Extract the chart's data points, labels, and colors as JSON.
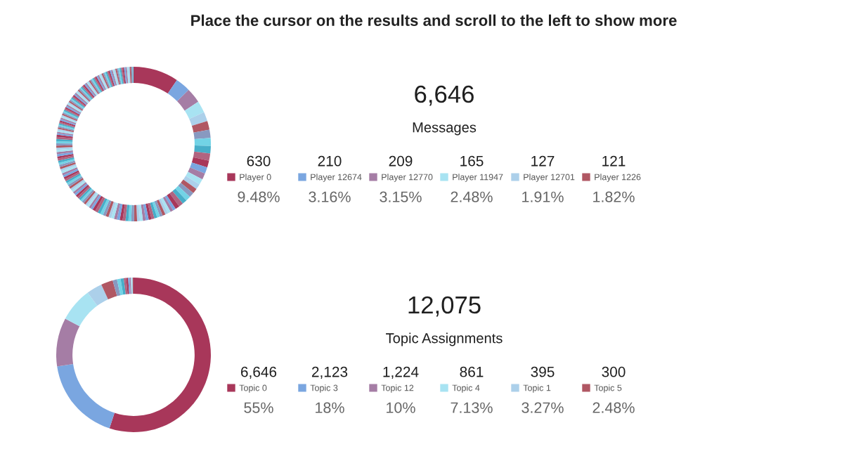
{
  "chart_data": [
    {
      "type": "donut",
      "title": "6,646",
      "subtitle": "Messages",
      "legend": "right",
      "annotations": [
        "Place the cursor on the results and scroll to the left to show more",
        {
          "text": "9.48%",
          "x": "Player 0"
        },
        {
          "text": "3.16%",
          "x": "Player 12674"
        },
        {
          "text": "3.15%",
          "x": "Player 12770"
        },
        {
          "text": "2.48%",
          "x": "Player 11947"
        },
        {
          "text": "1.91%",
          "x": "Player 12701"
        },
        {
          "text": "1.82%",
          "x": "Player 1226"
        }
      ],
      "categories": [
        "Player 0",
        "Player 12674",
        "Player 12770",
        "Player 11947",
        "Player 12701",
        "Player 1226",
        null,
        null,
        null,
        null,
        null,
        null,
        null,
        null,
        null,
        null,
        null,
        null,
        null,
        null,
        null,
        null,
        null,
        null,
        null,
        null,
        null,
        null,
        null,
        null,
        null,
        null,
        null,
        null,
        null,
        null,
        null,
        null,
        null,
        null,
        null,
        null,
        null,
        null,
        null,
        null,
        null,
        null,
        null,
        null,
        null,
        null,
        null,
        null,
        null,
        null,
        null,
        null,
        null,
        null,
        null,
        null,
        null,
        null,
        null,
        null,
        null,
        null,
        null,
        null,
        null,
        null,
        null,
        null,
        null,
        null,
        null,
        null,
        null,
        null,
        null,
        null,
        null,
        null,
        null,
        null,
        null,
        null,
        null,
        null,
        null,
        null,
        null,
        null,
        null,
        null,
        null,
        null,
        null,
        null,
        null,
        null,
        null,
        null,
        null,
        null,
        null,
        null,
        null,
        null,
        null,
        null,
        null,
        null,
        null,
        null,
        null,
        null,
        null,
        null,
        null,
        null,
        null,
        null,
        null,
        null,
        null,
        null,
        null,
        null,
        null,
        null,
        null,
        null,
        null,
        null,
        null,
        null,
        null,
        null,
        null,
        null,
        null,
        null,
        null,
        null,
        null,
        null,
        null,
        null,
        null,
        null,
        null,
        null,
        null,
        null,
        null,
        null,
        null,
        null,
        null,
        null,
        null,
        null,
        null,
        null,
        null,
        null
      ],
      "values": [
        630,
        210,
        209,
        165,
        127,
        121,
        115,
        110,
        105,
        100,
        95,
        90,
        85,
        80,
        75,
        72,
        70,
        68,
        65,
        62,
        60,
        40,
        40,
        40,
        40,
        40,
        40,
        40,
        40,
        40,
        40,
        40,
        40,
        40,
        40,
        40,
        40,
        40,
        40,
        40,
        40,
        40,
        40,
        40,
        40,
        40,
        40,
        40,
        40,
        40,
        40,
        30,
        30,
        30,
        30,
        30,
        30,
        30,
        30,
        30,
        30,
        30,
        30,
        30,
        30,
        30,
        30,
        30,
        30,
        30,
        30,
        30,
        30,
        30,
        30,
        30,
        30,
        30,
        30,
        30,
        30,
        30,
        30,
        30,
        30,
        30,
        30,
        30,
        30,
        30,
        30,
        20,
        20,
        20,
        20,
        20,
        20,
        20,
        20,
        20,
        20,
        20,
        20,
        20,
        20,
        20,
        20,
        20,
        20,
        20,
        20,
        20,
        20,
        20,
        20,
        20,
        20,
        20,
        20,
        20,
        20,
        20,
        20,
        20,
        20,
        20,
        20,
        20,
        20,
        20,
        20,
        20,
        20,
        20,
        20,
        20,
        20,
        20,
        20,
        20,
        20,
        20,
        20,
        20,
        20,
        20,
        20,
        20,
        20,
        20,
        20,
        20,
        20,
        20,
        20,
        20,
        20,
        20,
        20,
        20,
        20,
        20,
        20,
        20,
        20,
        20,
        20,
        12
      ],
      "value_labels": [
        "630",
        "210",
        "209",
        "165",
        "127",
        "121",
        null,
        null,
        null,
        null,
        null,
        null,
        null,
        null,
        null,
        null,
        null,
        null,
        null,
        null,
        null,
        null,
        null,
        null,
        null,
        null,
        null,
        null,
        null,
        null,
        null,
        null,
        null,
        null,
        null,
        null,
        null,
        null,
        null,
        null,
        null,
        null,
        null,
        null,
        null,
        null,
        null,
        null,
        null,
        null,
        null,
        null,
        null,
        null,
        null,
        null,
        null,
        null,
        null,
        null,
        null,
        null,
        null,
        null,
        null,
        null,
        null,
        null,
        null,
        null,
        null,
        null,
        null,
        null,
        null,
        null,
        null,
        null,
        null,
        null,
        null,
        null,
        null,
        null,
        null,
        null,
        null,
        null,
        null,
        null,
        null,
        null,
        null,
        null,
        null,
        null,
        null,
        null,
        null,
        null,
        null,
        null,
        null,
        null,
        null,
        null,
        null,
        null,
        null,
        null,
        null,
        null,
        null,
        null,
        null,
        null,
        null,
        null,
        null,
        null,
        null,
        null,
        null,
        null,
        null,
        null,
        null,
        null,
        null,
        null,
        null,
        null,
        null,
        null,
        null,
        null,
        null,
        null,
        null,
        null,
        null,
        null,
        null,
        null,
        null,
        null,
        null,
        null,
        null,
        null,
        null,
        null,
        null,
        null,
        null,
        null,
        null,
        null,
        null,
        null,
        null,
        null,
        null,
        null,
        null,
        null,
        null,
        null
      ],
      "colors": [
        "#a8375a",
        "#7aa6e0",
        "#a57da5",
        "#a8e3f2",
        "#acd0ea",
        "#b05763",
        "#8899c0",
        "#72d3e6",
        "#47aec9",
        "#b06480",
        "#a8375a",
        "#7aa6e0",
        "#a57da5",
        "#a8e3f2",
        "#acd0ea",
        "#b05763",
        "#8899c0",
        "#72d3e6",
        "#47aec9",
        "#b06480",
        "#a8375a",
        "#7aa6e0",
        "#a57da5",
        "#a8e3f2",
        "#acd0ea",
        "#b05763",
        "#8899c0",
        "#72d3e6",
        "#47aec9",
        "#b06480",
        "#a8375a",
        "#7aa6e0",
        "#a57da5",
        "#a8e3f2",
        "#acd0ea",
        "#b05763",
        "#8899c0",
        "#72d3e6",
        "#47aec9",
        "#b06480",
        "#a8375a",
        "#7aa6e0",
        "#a57da5",
        "#a8e3f2",
        "#acd0ea",
        "#b05763",
        "#8899c0",
        "#72d3e6",
        "#47aec9",
        "#b06480",
        "#a8375a",
        "#7aa6e0",
        "#a57da5",
        "#a8e3f2",
        "#acd0ea",
        "#b05763",
        "#8899c0",
        "#72d3e6",
        "#47aec9",
        "#b06480",
        "#a8375a",
        "#7aa6e0",
        "#a57da5",
        "#a8e3f2",
        "#acd0ea",
        "#b05763",
        "#8899c0",
        "#72d3e6",
        "#47aec9",
        "#b06480",
        "#a8375a",
        "#7aa6e0",
        "#a57da5",
        "#a8e3f2",
        "#acd0ea",
        "#b05763",
        "#8899c0",
        "#72d3e6",
        "#47aec9",
        "#b06480",
        "#a8375a",
        "#7aa6e0",
        "#a57da5",
        "#a8e3f2",
        "#acd0ea",
        "#b05763",
        "#8899c0",
        "#72d3e6",
        "#47aec9",
        "#b06480",
        "#a8375a",
        "#7aa6e0",
        "#a57da5",
        "#a8e3f2",
        "#acd0ea",
        "#b05763",
        "#8899c0",
        "#72d3e6",
        "#47aec9",
        "#b06480",
        "#a8375a",
        "#7aa6e0",
        "#a57da5",
        "#a8e3f2",
        "#acd0ea",
        "#b05763",
        "#8899c0",
        "#72d3e6",
        "#47aec9",
        "#b06480",
        "#a8375a",
        "#7aa6e0",
        "#a57da5",
        "#a8e3f2",
        "#acd0ea",
        "#b05763",
        "#8899c0",
        "#72d3e6",
        "#47aec9",
        "#b06480",
        "#a8375a",
        "#7aa6e0",
        "#a57da5",
        "#a8e3f2",
        "#acd0ea",
        "#b05763",
        "#8899c0",
        "#72d3e6",
        "#47aec9",
        "#b06480",
        "#a8375a",
        "#7aa6e0",
        "#a57da5",
        "#a8e3f2",
        "#acd0ea",
        "#b05763",
        "#8899c0",
        "#72d3e6",
        "#47aec9",
        "#b06480",
        "#a8375a",
        "#7aa6e0",
        "#a57da5",
        "#a8e3f2",
        "#acd0ea",
        "#b05763",
        "#8899c0",
        "#72d3e6",
        "#47aec9",
        "#b06480",
        "#a8375a",
        "#7aa6e0",
        "#a57da5",
        "#a8e3f2",
        "#acd0ea",
        "#b05763",
        "#8899c0",
        "#72d3e6",
        "#47aec9",
        "#b06480",
        "#a8375a",
        "#7aa6e0",
        "#a57da5",
        "#a8e3f2",
        "#acd0ea",
        "#b05763",
        "#8899c0",
        "#72d3e6"
      ]
    },
    {
      "type": "donut",
      "title": "12,075",
      "subtitle": "Topic Assignments",
      "legend": "right",
      "categories": [
        "Topic 0",
        "Topic 3",
        "Topic 12",
        "Topic 4",
        "Topic 1",
        "Topic 5",
        null,
        null,
        null,
        null,
        null,
        null,
        null,
        null,
        null,
        null
      ],
      "values": [
        6646,
        2123,
        1224,
        861,
        395,
        300,
        110,
        90,
        80,
        60,
        50,
        40,
        30,
        25,
        20,
        21
      ],
      "value_labels": [
        "6,646",
        "2,123",
        "1,224",
        "861",
        "395",
        "300",
        null,
        null,
        null,
        null,
        null,
        null,
        null,
        null,
        null,
        null
      ],
      "annotations": [
        {
          "text": "55%",
          "x": "Topic 0"
        },
        {
          "text": "18%",
          "x": "Topic 3"
        },
        {
          "text": "10%",
          "x": "Topic 12"
        },
        {
          "text": "7.13%",
          "x": "Topic 4"
        },
        {
          "text": "3.27%",
          "x": "Topic 1"
        },
        {
          "text": "2.48%",
          "x": "Topic 5"
        }
      ],
      "colors": [
        "#a8375a",
        "#7aa6e0",
        "#a57da5",
        "#a8e3f2",
        "#acd0ea",
        "#b05763",
        "#8899c0",
        "#72d3e6",
        "#47aec9",
        "#b06480",
        "#a8375a",
        "#7aa6e0",
        "#a57da5",
        "#a8e3f2",
        "#acd0ea",
        "#b05763"
      ]
    }
  ]
}
